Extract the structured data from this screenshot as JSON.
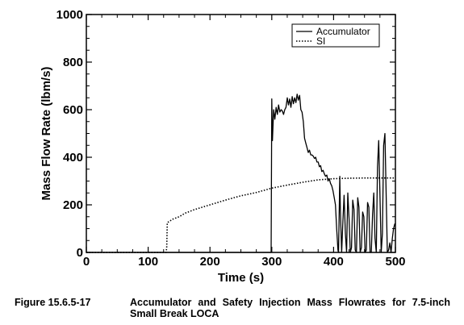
{
  "chart_data": {
    "type": "line",
    "xlabel": "Time (s)",
    "ylabel": "Mass Flow Rate (lbm/s)",
    "xlim": [
      0,
      500
    ],
    "ylim": [
      0,
      1000
    ],
    "xticks": [
      0,
      100,
      200,
      300,
      400,
      500
    ],
    "yticks": [
      0,
      200,
      400,
      600,
      800,
      1000
    ],
    "grid": false,
    "legend": "top-right",
    "series": [
      {
        "name": "Accumulator",
        "style": "solid",
        "color": "#000000",
        "x": [
          0,
          299,
          300,
          301,
          303,
          305,
          307,
          309,
          311,
          313,
          315,
          317,
          319,
          321,
          323,
          325,
          327,
          329,
          331,
          333,
          335,
          337,
          339,
          341,
          343,
          345,
          347,
          349,
          351,
          353,
          355,
          357,
          359,
          361,
          363,
          365,
          367,
          369,
          371,
          373,
          375,
          377,
          379,
          381,
          383,
          385,
          387,
          389,
          391,
          393,
          395,
          397,
          399,
          401,
          403,
          405,
          407,
          408,
          410,
          411,
          413,
          415,
          417,
          419,
          421,
          423,
          425,
          427,
          429,
          431,
          433,
          435,
          437,
          439,
          441,
          443,
          445,
          447,
          449,
          451,
          453,
          455,
          457,
          459,
          461,
          463,
          465,
          467,
          469,
          471,
          473,
          475,
          477,
          479,
          481,
          483,
          485,
          487,
          489,
          491,
          493,
          495,
          497,
          499,
          500
        ],
        "y": [
          0,
          0,
          645,
          470,
          600,
          560,
          610,
          580,
          620,
          590,
          600,
          595,
          580,
          600,
          610,
          650,
          620,
          645,
          610,
          655,
          625,
          650,
          630,
          665,
          640,
          660,
          600,
          590,
          550,
          480,
          460,
          440,
          420,
          430,
          410,
          410,
          405,
          395,
          400,
          380,
          380,
          360,
          365,
          340,
          345,
          330,
          320,
          325,
          300,
          310,
          290,
          280,
          260,
          230,
          200,
          100,
          10,
          0,
          320,
          180,
          0,
          130,
          240,
          80,
          0,
          250,
          140,
          0,
          20,
          220,
          180,
          10,
          0,
          230,
          190,
          0,
          20,
          170,
          150,
          0,
          10,
          210,
          190,
          0,
          0,
          160,
          250,
          60,
          0,
          360,
          470,
          250,
          0,
          80,
          450,
          500,
          250,
          0,
          10,
          40,
          0,
          60,
          100,
          120,
          120
        ]
      },
      {
        "name": "SI",
        "style": "dotted",
        "color": "#000000",
        "x": [
          0,
          129,
          130,
          131,
          140,
          150,
          160,
          175,
          200,
          225,
          250,
          275,
          300,
          325,
          350,
          375,
          400,
          425,
          450,
          475,
          500
        ],
        "y": [
          0,
          0,
          20,
          125,
          140,
          150,
          165,
          180,
          200,
          220,
          238,
          252,
          270,
          283,
          295,
          305,
          310,
          312,
          313,
          313,
          313
        ]
      }
    ]
  },
  "caption": {
    "number": "Figure 15.6.5-17",
    "text": "Accumulator and Safety Injection Mass Flowrates for 7.5-inch Small Break LOCA"
  }
}
